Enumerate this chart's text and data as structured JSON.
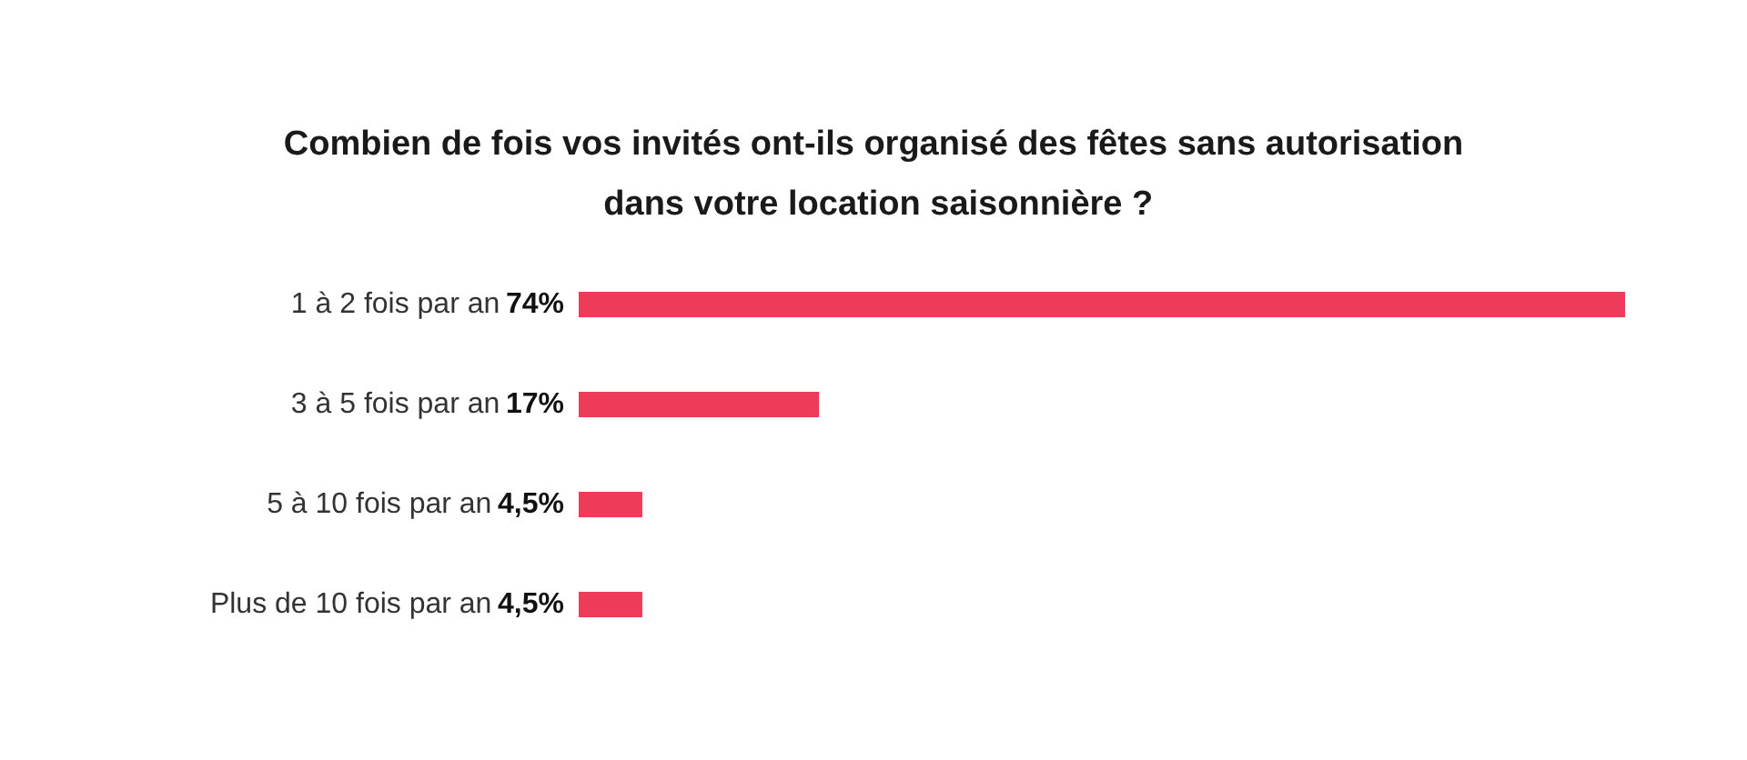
{
  "chart_data": {
    "type": "bar",
    "orientation": "horizontal",
    "title": "Combien de fois vos invités ont-ils organisé des fêtes sans autorisation dans votre location saisonnière ?",
    "categories": [
      "1 à 2 fois par an",
      "3 à 5 fois par an",
      "5 à 10 fois par an",
      "Plus de 10 fois par an"
    ],
    "values": [
      74,
      17,
      4.5,
      4.5
    ],
    "value_labels": [
      "74%",
      "17%",
      "4,5%",
      "4,5%"
    ],
    "color": "#ee3b5a"
  }
}
